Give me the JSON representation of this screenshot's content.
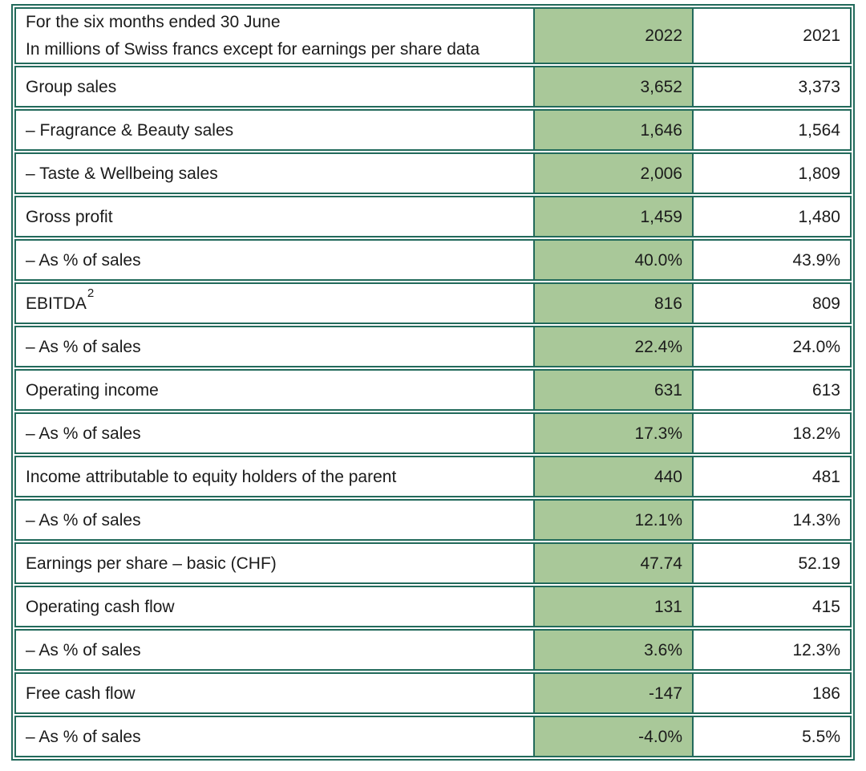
{
  "table": {
    "header": {
      "label_line1": "For the six months ended 30 June",
      "label_line2": "In millions of Swiss francs except for earnings per share data",
      "col_2022": "2022",
      "col_2021": "2021"
    },
    "rows": [
      {
        "label": "Group sales",
        "v2022": "3,652",
        "v2021": "3,373"
      },
      {
        "label": "– Fragrance & Beauty sales",
        "v2022": "1,646",
        "v2021": "1,564"
      },
      {
        "label": "– Taste & Wellbeing sales",
        "v2022": "2,006",
        "v2021": "1,809"
      },
      {
        "label": "Gross profit",
        "v2022": "1,459",
        "v2021": "1,480"
      },
      {
        "label": "– As % of sales",
        "v2022": "40.0%",
        "v2021": "43.9%"
      },
      {
        "label": "EBITDA",
        "label_sup": "2",
        "v2022": "816",
        "v2021": "809"
      },
      {
        "label": "– As % of sales",
        "v2022": "22.4%",
        "v2021": "24.0%"
      },
      {
        "label": "Operating income",
        "v2022": "631",
        "v2021": "613"
      },
      {
        "label": "– As % of sales",
        "v2022": "17.3%",
        "v2021": "18.2%"
      },
      {
        "label": "Income attributable to equity holders of the parent",
        "v2022": "440",
        "v2021": "481"
      },
      {
        "label": "– As % of sales",
        "v2022": "12.1%",
        "v2021": "14.3%"
      },
      {
        "label": "Earnings per share – basic (CHF)",
        "v2022": "47.74",
        "v2021": "52.19"
      },
      {
        "label": "Operating cash flow",
        "v2022": "131",
        "v2021": "415"
      },
      {
        "label": "– As % of sales",
        "v2022": "3.6%",
        "v2021": "12.3%"
      },
      {
        "label": "Free cash flow",
        "v2022": "-147",
        "v2021": "186"
      },
      {
        "label": "– As % of sales",
        "v2022": "-4.0%",
        "v2021": "5.5%"
      }
    ],
    "colors": {
      "highlight_fill": "#a9c899",
      "border_green": "#226a5b",
      "text": "#1b1b1b",
      "background": "#ffffff"
    }
  }
}
